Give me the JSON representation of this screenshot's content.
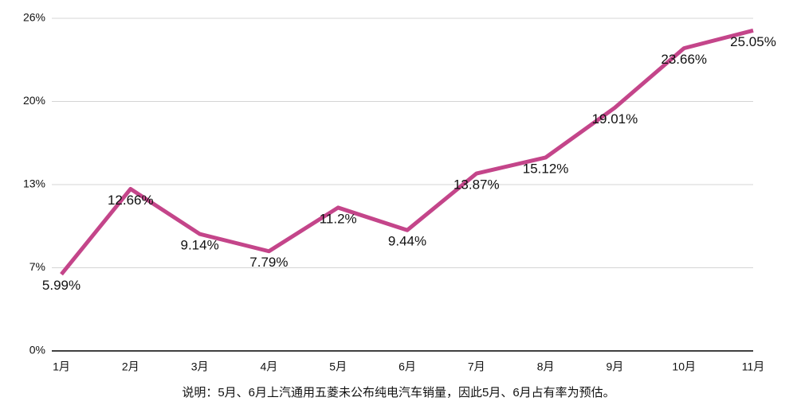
{
  "chart_data": {
    "type": "line",
    "note": "说明：5月、6月上汽通用五菱未公布纯电汽车销量，因此5月、6月占有率为预估。",
    "categories": [
      "1月",
      "2月",
      "3月",
      "4月",
      "5月",
      "6月",
      "7月",
      "8月",
      "9月",
      "10月",
      "11月"
    ],
    "series": [
      {
        "color": "#c4458a",
        "values": [
          5.99,
          12.66,
          9.14,
          7.79,
          11.2,
          9.44,
          13.87,
          15.12,
          19.01,
          23.66,
          25.05
        ],
        "value_labels": [
          "5.99%",
          "12.66%",
          "9.14%",
          "7.79%",
          "11.2%",
          "9.44%",
          "13.87%",
          "15.12%",
          "19.01%",
          "23.66%",
          "25.05%"
        ]
      }
    ],
    "ylim": [
      0,
      26
    ],
    "yticks": [
      {
        "value": 0,
        "label": "0%"
      },
      {
        "value": 6.5,
        "label": "7%"
      },
      {
        "value": 13,
        "label": "13%"
      },
      {
        "value": 19.5,
        "label": "20%"
      },
      {
        "value": 26,
        "label": "26%"
      }
    ],
    "grid": true
  }
}
